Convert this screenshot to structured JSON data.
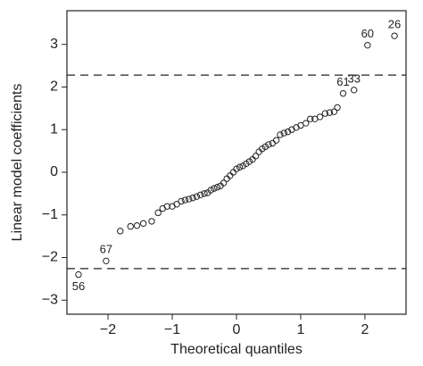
{
  "chart_data": {
    "type": "scatter",
    "xlabel": "Theoretical quantiles",
    "ylabel": "Linear model coefficients",
    "xlim": [
      -2.64,
      2.64
    ],
    "ylim": [
      -3.33,
      3.79
    ],
    "xticks": [
      {
        "value": -2,
        "label": "−2"
      },
      {
        "value": -1,
        "label": "−1"
      },
      0,
      1,
      2
    ],
    "yticks": [
      {
        "value": -3,
        "label": "−3"
      },
      {
        "value": -2,
        "label": "−2"
      },
      {
        "value": -1,
        "label": "−1"
      },
      0,
      1,
      2,
      3
    ],
    "reference_lines": [
      2.28,
      -2.26
    ],
    "series": [
      {
        "color": "#222222",
        "x": [
          -2.46,
          -2.03,
          -1.81,
          -1.65,
          -1.55,
          -1.45,
          -1.32,
          -1.22,
          -1.15,
          -1.08,
          -1.0,
          -0.93,
          -0.86,
          -0.8,
          -0.74,
          -0.68,
          -0.62,
          -0.56,
          -0.5,
          -0.45,
          -0.4,
          -0.35,
          -0.3,
          -0.25,
          -0.2,
          -0.15,
          -0.1,
          -0.05,
          0,
          0.05,
          0.1,
          0.15,
          0.2,
          0.25,
          0.3,
          0.35,
          0.4,
          0.45,
          0.5,
          0.56,
          0.62,
          0.68,
          0.74,
          0.8,
          0.86,
          0.93,
          1.0,
          1.08,
          1.15,
          1.22,
          1.3,
          1.38,
          1.45,
          1.52,
          1.57,
          1.66,
          1.83,
          2.04,
          2.46
        ],
        "values": [
          -2.4,
          -2.08,
          -1.38,
          -1.27,
          -1.25,
          -1.2,
          -1.15,
          -0.95,
          -0.85,
          -0.8,
          -0.8,
          -0.75,
          -0.68,
          -0.65,
          -0.63,
          -0.6,
          -0.57,
          -0.53,
          -0.5,
          -0.48,
          -0.42,
          -0.38,
          -0.35,
          -0.32,
          -0.25,
          -0.15,
          -0.08,
          0,
          0.08,
          0.12,
          0.15,
          0.2,
          0.25,
          0.3,
          0.38,
          0.48,
          0.55,
          0.6,
          0.65,
          0.68,
          0.75,
          0.88,
          0.92,
          0.95,
          1.0,
          1.05,
          1.1,
          1.15,
          1.25,
          1.25,
          1.3,
          1.38,
          1.4,
          1.42,
          1.52,
          1.85,
          1.93,
          2.98,
          3.2
        ],
        "labels": [
          "56",
          "67",
          null,
          null,
          null,
          null,
          null,
          null,
          null,
          null,
          null,
          null,
          null,
          null,
          null,
          null,
          null,
          null,
          null,
          null,
          null,
          null,
          null,
          null,
          null,
          null,
          null,
          null,
          null,
          null,
          null,
          null,
          null,
          null,
          null,
          null,
          null,
          null,
          null,
          null,
          null,
          null,
          null,
          null,
          null,
          null,
          null,
          null,
          null,
          null,
          null,
          null,
          null,
          null,
          null,
          "61",
          "33",
          "60",
          "26"
        ]
      }
    ]
  }
}
